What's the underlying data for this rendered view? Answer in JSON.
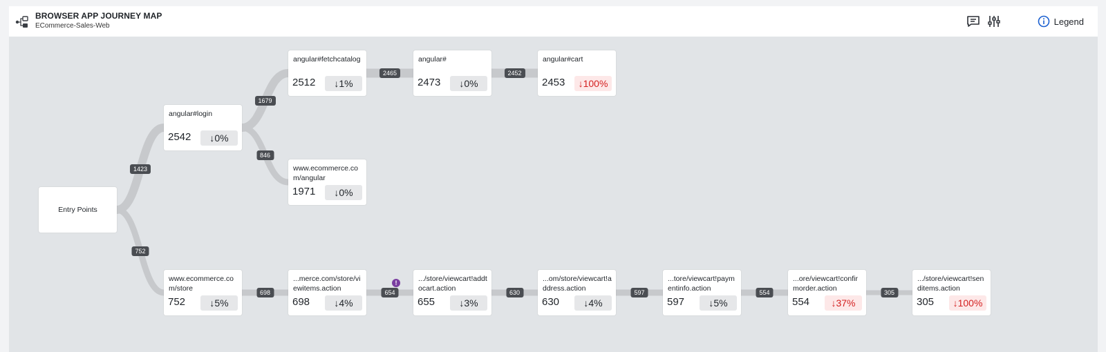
{
  "header": {
    "title": "BROWSER APP JOURNEY MAP",
    "subtitle": "ECommerce-Sales-Web",
    "legend_label": "Legend",
    "icons": [
      "journey-map-icon",
      "comment-icon",
      "sliders-icon",
      "info-icon"
    ]
  },
  "colors": {
    "link": "#c7c9cc",
    "edge_label_bg": "#4a4d52",
    "bad_drop_bg": "#fde8e8",
    "bad_drop_text": "#d42020",
    "warning": "#7a3ea0"
  },
  "nodes": [
    {
      "id": "entry",
      "label": "Entry Points"
    },
    {
      "id": "login",
      "label": "angular#login",
      "count": "2542",
      "drop": "↓0%",
      "bad": false
    },
    {
      "id": "fetch",
      "label": "angular#fetchcatalog",
      "count": "2512",
      "drop": "↓1%",
      "bad": false
    },
    {
      "id": "hash",
      "label": "angular#",
      "count": "2473",
      "drop": "↓0%",
      "bad": false
    },
    {
      "id": "cart",
      "label": "angular#cart",
      "count": "2453",
      "drop": "↓100%",
      "bad": true
    },
    {
      "id": "ecomang",
      "label": "www.ecommerce.com/angular",
      "count": "1971",
      "drop": "↓0%",
      "bad": false
    },
    {
      "id": "store",
      "label": "www.ecommerce.com/store",
      "count": "752",
      "drop": "↓5%",
      "bad": false
    },
    {
      "id": "viewitems",
      "label": "...merce.com/store/viewitems.action",
      "count": "698",
      "drop": "↓4%",
      "bad": false
    },
    {
      "id": "addtocart",
      "label": ".../store/viewcart!addtocart.action",
      "count": "655",
      "drop": "↓3%",
      "bad": false
    },
    {
      "id": "address",
      "label": "...om/store/viewcart!address.action",
      "count": "630",
      "drop": "↓4%",
      "bad": false
    },
    {
      "id": "payment",
      "label": "...tore/viewcart!paymentinfo.action",
      "count": "597",
      "drop": "↓5%",
      "bad": false
    },
    {
      "id": "confirm",
      "label": "...ore/viewcart!confirmorder.action",
      "count": "554",
      "drop": "↓37%",
      "bad": true
    },
    {
      "id": "senditems",
      "label": ".../store/viewcart!senditems.action",
      "count": "305",
      "drop": "↓100%",
      "bad": true
    }
  ],
  "edges": [
    {
      "from": "entry",
      "to": "login",
      "value": "1423"
    },
    {
      "from": "entry",
      "to": "store",
      "value": "752"
    },
    {
      "from": "login",
      "to": "fetch",
      "value": "1679"
    },
    {
      "from": "login",
      "to": "ecomang",
      "value": "846"
    },
    {
      "from": "fetch",
      "to": "hash",
      "value": "2465"
    },
    {
      "from": "hash",
      "to": "cart",
      "value": "2452"
    },
    {
      "from": "store",
      "to": "viewitems",
      "value": "698"
    },
    {
      "from": "viewitems",
      "to": "addtocart",
      "value": "654",
      "warning": "!"
    },
    {
      "from": "addtocart",
      "to": "address",
      "value": "630"
    },
    {
      "from": "address",
      "to": "payment",
      "value": "597"
    },
    {
      "from": "payment",
      "to": "confirm",
      "value": "554"
    },
    {
      "from": "confirm",
      "to": "senditems",
      "value": "305"
    }
  ]
}
